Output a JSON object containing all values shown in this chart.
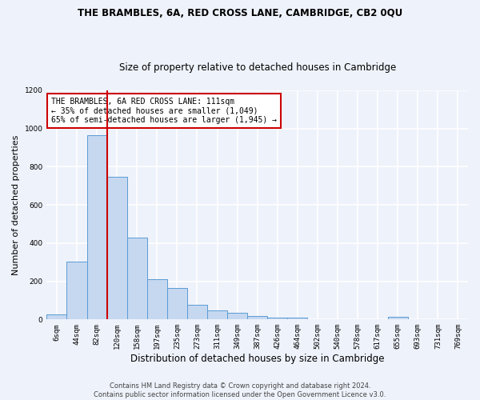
{
  "title": "THE BRAMBLES, 6A, RED CROSS LANE, CAMBRIDGE, CB2 0QU",
  "subtitle": "Size of property relative to detached houses in Cambridge",
  "xlabel": "Distribution of detached houses by size in Cambridge",
  "ylabel": "Number of detached properties",
  "categories": [
    "6sqm",
    "44sqm",
    "82sqm",
    "120sqm",
    "158sqm",
    "197sqm",
    "235sqm",
    "273sqm",
    "311sqm",
    "349sqm",
    "387sqm",
    "426sqm",
    "464sqm",
    "502sqm",
    "540sqm",
    "578sqm",
    "617sqm",
    "655sqm",
    "693sqm",
    "731sqm",
    "769sqm"
  ],
  "bar_heights": [
    25,
    305,
    965,
    748,
    428,
    210,
    165,
    78,
    48,
    33,
    18,
    10,
    10,
    0,
    0,
    0,
    0,
    14,
    0,
    0,
    0
  ],
  "bar_color": "#c5d8f0",
  "bar_edge_color": "#5b9bd5",
  "ylim": [
    0,
    1200
  ],
  "yticks": [
    0,
    200,
    400,
    600,
    800,
    1000,
    1200
  ],
  "property_line_x": 2.5,
  "annotation_line1": "THE BRAMBLES, 6A RED CROSS LANE: 111sqm",
  "annotation_line2": "← 35% of detached houses are smaller (1,049)",
  "annotation_line3": "65% of semi-detached houses are larger (1,945) →",
  "footer_line1": "Contains HM Land Registry data © Crown copyright and database right 2024.",
  "footer_line2": "Contains public sector information licensed under the Open Government Licence v3.0.",
  "background_color": "#eef2fa",
  "grid_color": "#ffffff",
  "annotation_box_color": "#ffffff",
  "annotation_box_edge": "#cc0000",
  "property_line_color": "#cc0000",
  "title_fontsize": 8.5,
  "subtitle_fontsize": 8.5,
  "ylabel_fontsize": 8,
  "xlabel_fontsize": 8.5,
  "tick_fontsize": 6.5,
  "annotation_fontsize": 7,
  "footer_fontsize": 6
}
